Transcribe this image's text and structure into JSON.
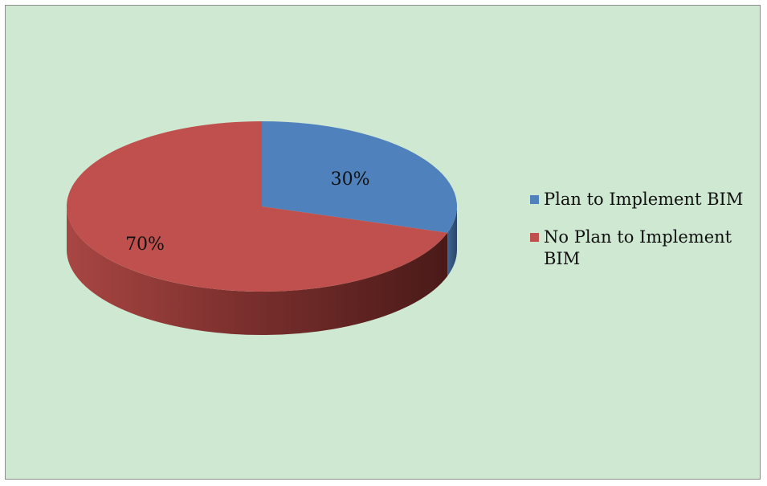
{
  "chart_data": {
    "type": "pie",
    "title": "",
    "categories": [
      "Plan to Implement BIM",
      "No Plan to Implement BIM"
    ],
    "values": [
      30,
      70
    ],
    "data_labels": [
      "30%",
      "70%"
    ],
    "colors": [
      "#4f81bd",
      "#c0504d"
    ],
    "side_colors": [
      "#2f4f77",
      "#8e3432"
    ],
    "legend": "right",
    "style": "3d"
  }
}
